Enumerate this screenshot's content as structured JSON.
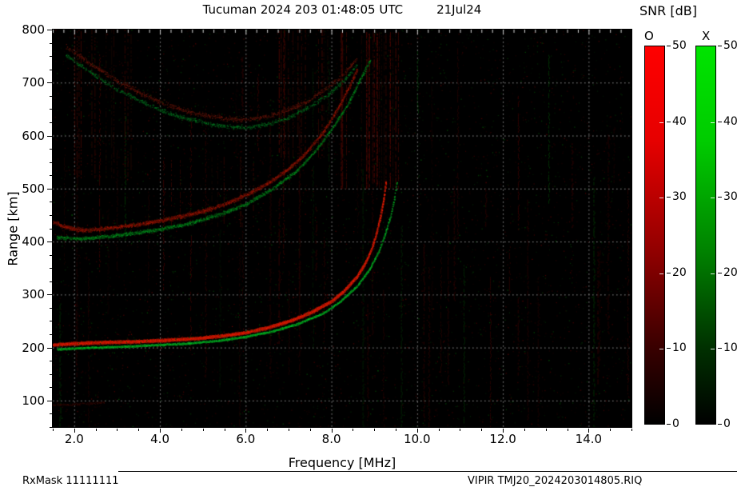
{
  "header": {
    "title": "Tucuman 2024 203 01:48:05 UTC",
    "date": "21Jul24"
  },
  "footer": {
    "left": "RxMask 11111111",
    "right": "VIPIR  TMJ20_2024203014805.RIQ"
  },
  "axes": {
    "x": {
      "label": "Frequency [MHz]",
      "min": 1.5,
      "max": 15.0,
      "tick_values": [
        2,
        4,
        6,
        8,
        10,
        12,
        14
      ],
      "tick_labels": [
        "2.0",
        "4.0",
        "6.0",
        "8.0",
        "10.0",
        "12.0",
        "14.0"
      ],
      "minor_step": 0.5
    },
    "y": {
      "label": "Range [km]",
      "min": 50,
      "max": 800,
      "tick_values": [
        100,
        200,
        300,
        400,
        500,
        600,
        700,
        800
      ],
      "tick_labels": [
        "100",
        "200",
        "300",
        "400",
        "500",
        "600",
        "700",
        "800"
      ],
      "minor_step": 25
    }
  },
  "colorbar": {
    "title": "SNR [dB]",
    "min": 0,
    "max": 50,
    "tick_values": [
      0,
      10,
      20,
      30,
      40,
      50
    ],
    "bars": [
      {
        "label": "O",
        "gradient": [
          "#ff0000",
          "#e60000",
          "#8f0000",
          "#380000",
          "#000000"
        ]
      },
      {
        "label": "X",
        "gradient": [
          "#00e400",
          "#00cc00",
          "#008000",
          "#003000",
          "#000000"
        ]
      }
    ]
  },
  "chart_data": {
    "type": "heatmap",
    "subtype": "ionogram",
    "title": "Tucuman 2024 203 01:48:05 UTC 21Jul24",
    "xlabel": "Frequency [MHz]",
    "ylabel": "Range [km]",
    "xlim": [
      1.5,
      15.0
    ],
    "ylim": [
      50,
      800
    ],
    "snr_scale_db": [
      0,
      50
    ],
    "legend": {
      "O_mode_color": "#ff0000",
      "X_mode_color": "#00cc00",
      "background": "#000000"
    },
    "grid": {
      "on": true,
      "style": "dotted",
      "color": "#9a9a9a"
    },
    "series": [
      {
        "name": "1-hop F echo O-mode",
        "mode": "O",
        "color": [
          255,
          32,
          0
        ],
        "width_km": 5,
        "density": 10,
        "skip": 0.04,
        "intensity": [
          150,
          255
        ],
        "points": [
          [
            1.5,
            206
          ],
          [
            2,
            208
          ],
          [
            2.5,
            210
          ],
          [
            3,
            211
          ],
          [
            3.5,
            212
          ],
          [
            4,
            214
          ],
          [
            4.5,
            216
          ],
          [
            5,
            219
          ],
          [
            5.5,
            223
          ],
          [
            6,
            229
          ],
          [
            6.5,
            238
          ],
          [
            7,
            250
          ],
          [
            7.5,
            266
          ],
          [
            8,
            288
          ],
          [
            8.3,
            308
          ],
          [
            8.6,
            335
          ],
          [
            8.8,
            362
          ],
          [
            8.95,
            390
          ],
          [
            9.05,
            418
          ],
          [
            9.15,
            452
          ],
          [
            9.22,
            484
          ],
          [
            9.27,
            515
          ]
        ]
      },
      {
        "name": "1-hop F echo X-mode",
        "mode": "X",
        "color": [
          0,
          225,
          45
        ],
        "width_km": 3.5,
        "density": 5,
        "skip": 0.3,
        "intensity": [
          110,
          235
        ],
        "points": [
          [
            1.6,
            197
          ],
          [
            2.2,
            200
          ],
          [
            3,
            202
          ],
          [
            3.8,
            205
          ],
          [
            4.6,
            208
          ],
          [
            5.4,
            214
          ],
          [
            6,
            221
          ],
          [
            6.6,
            231
          ],
          [
            7.2,
            245
          ],
          [
            7.8,
            265
          ],
          [
            8.2,
            287
          ],
          [
            8.6,
            317
          ],
          [
            8.9,
            350
          ],
          [
            9.1,
            382
          ],
          [
            9.25,
            415
          ],
          [
            9.38,
            450
          ],
          [
            9.47,
            484
          ],
          [
            9.52,
            510
          ]
        ]
      },
      {
        "name": "2-hop F echo O-mode",
        "mode": "O",
        "color": [
          240,
          32,
          0
        ],
        "width_km": 7,
        "density": 5,
        "skip": 0.3,
        "intensity": [
          55,
          185
        ],
        "points": [
          [
            1.5,
            438
          ],
          [
            1.8,
            428
          ],
          [
            2.2,
            422
          ],
          [
            2.6,
            424
          ],
          [
            3,
            428
          ],
          [
            3.5,
            433
          ],
          [
            4,
            440
          ],
          [
            4.5,
            448
          ],
          [
            5,
            458
          ],
          [
            5.5,
            471
          ],
          [
            6,
            488
          ],
          [
            6.5,
            510
          ],
          [
            7,
            538
          ],
          [
            7.4,
            568
          ],
          [
            7.8,
            606
          ],
          [
            8.1,
            645
          ],
          [
            8.4,
            690
          ],
          [
            8.6,
            726
          ]
        ]
      },
      {
        "name": "2-hop F echo X-mode",
        "mode": "X",
        "color": [
          0,
          210,
          42
        ],
        "width_km": 6,
        "density": 4,
        "skip": 0.35,
        "intensity": [
          55,
          200
        ],
        "points": [
          [
            1.6,
            408
          ],
          [
            2.2,
            406
          ],
          [
            3,
            412
          ],
          [
            3.8,
            421
          ],
          [
            4.6,
            433
          ],
          [
            5.4,
            452
          ],
          [
            6,
            471
          ],
          [
            6.6,
            499
          ],
          [
            7.2,
            535
          ],
          [
            7.6,
            570
          ],
          [
            8,
            612
          ],
          [
            8.4,
            662
          ],
          [
            8.7,
            712
          ],
          [
            8.9,
            742
          ]
        ]
      },
      {
        "name": "3-hop F echo O-mode",
        "mode": "O",
        "color": [
          205,
          40,
          18
        ],
        "width_km": 9,
        "density": 3,
        "skip": 0.5,
        "intensity": [
          38,
          145
        ],
        "points": [
          [
            1.8,
            768
          ],
          [
            2.2,
            746
          ],
          [
            2.6,
            724
          ],
          [
            3,
            704
          ],
          [
            3.5,
            682
          ],
          [
            4,
            664
          ],
          [
            4.5,
            650
          ],
          [
            5,
            640
          ],
          [
            5.5,
            633
          ],
          [
            6,
            631
          ],
          [
            6.5,
            637
          ],
          [
            7,
            649
          ],
          [
            7.5,
            669
          ],
          [
            8,
            697
          ],
          [
            8.3,
            719
          ],
          [
            8.6,
            747
          ]
        ]
      },
      {
        "name": "3-hop F echo X-mode",
        "mode": "X",
        "color": [
          0,
          195,
          52
        ],
        "width_km": 8,
        "density": 3,
        "skip": 0.5,
        "intensity": [
          38,
          165
        ],
        "points": [
          [
            1.8,
            752
          ],
          [
            2.2,
            730
          ],
          [
            2.6,
            708
          ],
          [
            3,
            688
          ],
          [
            3.5,
            667
          ],
          [
            4,
            649
          ],
          [
            4.5,
            635
          ],
          [
            5,
            625
          ],
          [
            5.5,
            618
          ],
          [
            6,
            616
          ],
          [
            6.5,
            622
          ],
          [
            7,
            635
          ],
          [
            7.5,
            656
          ],
          [
            8,
            683
          ],
          [
            8.3,
            706
          ],
          [
            8.6,
            734
          ]
        ]
      },
      {
        "name": "low-range scatter",
        "mode": "O",
        "color": [
          185,
          28,
          10
        ],
        "width_km": 4,
        "density": 2,
        "skip": 0.5,
        "intensity": [
          28,
          85
        ],
        "points": [
          [
            1.5,
            92
          ],
          [
            1.9,
            93
          ],
          [
            2.3,
            95
          ],
          [
            2.7,
            97
          ]
        ]
      }
    ],
    "noise": {
      "speckle_count": 4200,
      "speckle_red_fraction": 0.62,
      "speckle_intensity": [
        16,
        85
      ],
      "column_streaks": {
        "count": 60,
        "intensity": [
          16,
          55
        ]
      },
      "region_streaks": [
        {
          "x": [
            8.2,
            9.6
          ],
          "y": [
            500,
            795
          ],
          "count": 26,
          "intensity": [
            25,
            90
          ]
        },
        {
          "x": [
            2.0,
            3.4
          ],
          "y": [
            520,
            800
          ],
          "count": 12,
          "intensity": [
            20,
            60
          ]
        },
        {
          "x": [
            6.6,
            8.2
          ],
          "y": [
            560,
            800
          ],
          "count": 14,
          "intensity": [
            20,
            70
          ]
        },
        {
          "x": [
            4.2,
            6.2
          ],
          "y": [
            430,
            560
          ],
          "count": 8,
          "intensity": [
            18,
            50
          ]
        }
      ]
    }
  }
}
